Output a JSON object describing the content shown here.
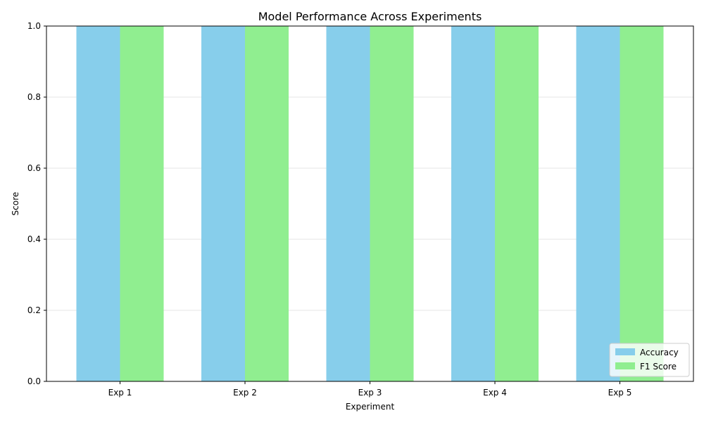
{
  "chart_data": {
    "type": "bar",
    "title": "Model Performance Across Experiments",
    "xlabel": "Experiment",
    "ylabel": "Score",
    "categories": [
      "Exp 1",
      "Exp 2",
      "Exp 3",
      "Exp 4",
      "Exp 5"
    ],
    "series": [
      {
        "name": "Accuracy",
        "color": "#87ceeb",
        "values": [
          1.0,
          1.0,
          1.0,
          1.0,
          1.0
        ]
      },
      {
        "name": "F1 Score",
        "color": "#90ee90",
        "values": [
          1.0,
          1.0,
          1.0,
          1.0,
          1.0
        ]
      }
    ],
    "ylim": [
      0,
      1.0
    ],
    "yticks": [
      0.0,
      0.2,
      0.4,
      0.6,
      0.8,
      1.0
    ],
    "ytick_labels": [
      "0.0",
      "0.2",
      "0.4",
      "0.6",
      "0.8",
      "1.0"
    ],
    "grid": "y",
    "legend_position": "lower-right"
  }
}
